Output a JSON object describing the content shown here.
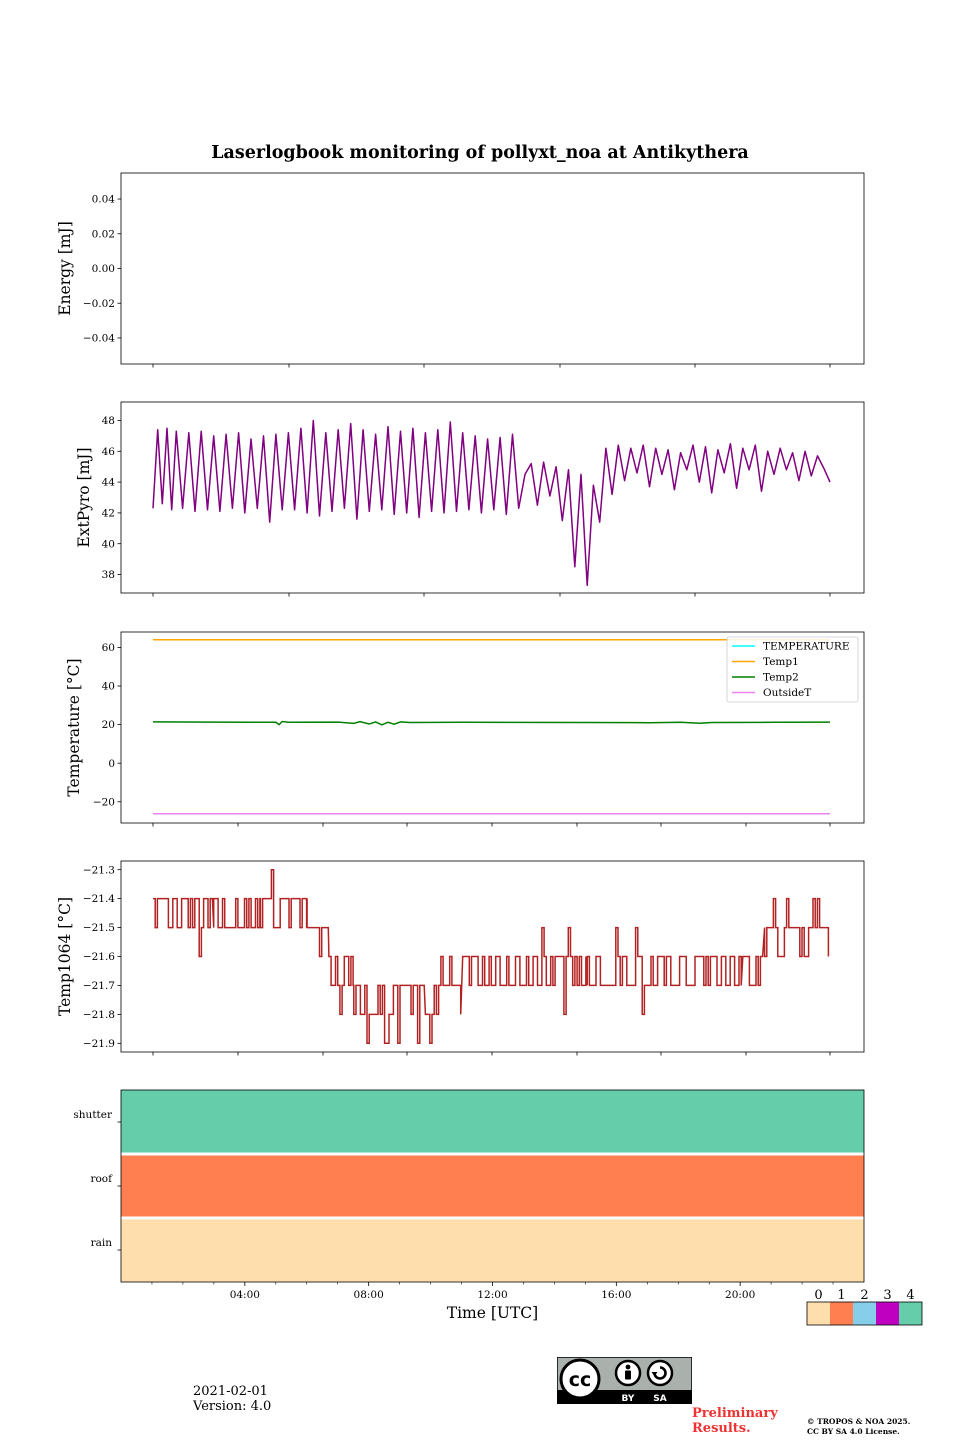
{
  "figure": {
    "title": "Laserlogbook monitoring of pollyxt_noa at Antikythera",
    "date": "2021-02-01",
    "version": "Version: 4.0",
    "preliminary": [
      "Preliminary",
      "Results."
    ],
    "copyright": [
      "© TROPOS & NOA 2025.",
      "CC BY SA 4.0 License."
    ],
    "license_icon": "cc-by-sa-icon"
  },
  "chart_data": [
    {
      "id": "energy",
      "type": "line",
      "ylabel": "Energy [mJ]",
      "yrange": [
        -0.055,
        0.055
      ],
      "yticks": [
        -0.04,
        -0.02,
        0.0,
        0.02,
        0.04
      ],
      "ytick_labels": [
        "−0.04",
        "−0.02",
        "0.00",
        "0.02",
        "0.04"
      ],
      "series": []
    },
    {
      "id": "extpyro",
      "type": "line",
      "ylabel": "ExtPyro [mJ]",
      "yrange": [
        36.8,
        49.2
      ],
      "yticks": [
        38,
        40,
        42,
        44,
        46,
        48
      ],
      "ytick_labels": [
        "38",
        "40",
        "42",
        "44",
        "46",
        "48"
      ],
      "series": [
        {
          "color": "#800080",
          "x_hours": [
            0.05,
            0.2,
            0.35,
            0.5,
            0.65,
            0.8,
            1.0,
            1.2,
            1.4,
            1.6,
            1.8,
            2.0,
            2.2,
            2.4,
            2.6,
            2.8,
            3.0,
            3.2,
            3.4,
            3.6,
            3.8,
            4.0,
            4.2,
            4.4,
            4.6,
            4.8,
            5.0,
            5.2,
            5.4,
            5.6,
            5.8,
            6.0,
            6.2,
            6.4,
            6.6,
            6.8,
            7.0,
            7.2,
            7.4,
            7.6,
            7.8,
            8.0,
            8.2,
            8.4,
            8.6,
            8.8,
            9.0,
            9.2,
            9.4,
            9.6,
            9.8,
            10.0,
            10.2,
            10.4,
            10.6,
            10.8,
            11.0,
            11.2,
            11.4,
            11.6,
            11.8,
            12.0,
            12.2,
            12.4,
            12.6,
            12.8,
            13.0,
            13.2,
            13.4,
            13.6,
            13.8,
            14.0,
            14.2,
            14.4,
            14.6,
            14.8,
            15.0,
            15.2,
            15.4,
            15.6,
            15.8,
            16.0,
            16.2,
            16.4,
            16.6,
            16.8,
            17.0,
            17.2,
            17.4,
            17.6,
            17.8,
            18.0,
            18.2,
            18.4,
            18.6,
            18.8,
            19.0,
            19.2,
            19.4,
            19.6,
            19.8,
            20.0,
            20.2,
            20.4,
            20.6,
            20.8,
            21.0,
            21.2,
            21.4,
            21.6,
            21.8
          ],
          "values": [
            42.3,
            47.4,
            42.6,
            47.5,
            42.2,
            47.3,
            42.3,
            47.2,
            42.1,
            47.3,
            42.2,
            47.0,
            42.1,
            47.1,
            42.3,
            47.2,
            42.0,
            46.8,
            42.3,
            47.0,
            41.4,
            47.1,
            42.2,
            47.2,
            42.2,
            47.5,
            42.0,
            48.0,
            41.8,
            47.2,
            42.1,
            47.4,
            42.3,
            47.8,
            41.6,
            47.4,
            42.1,
            47.1,
            42.2,
            47.6,
            41.9,
            47.3,
            42.0,
            47.5,
            41.7,
            47.2,
            42.1,
            47.4,
            42.0,
            47.9,
            42.1,
            47.2,
            42.2,
            47.0,
            42.0,
            46.8,
            42.2,
            46.9,
            41.9,
            47.1,
            42.3,
            44.5,
            45.2,
            42.5,
            45.3,
            43.1,
            45.0,
            41.5,
            44.8,
            38.5,
            44.5,
            37.3,
            43.8,
            41.4,
            46.2,
            43.2,
            46.4,
            44.1,
            46.2,
            44.6,
            46.4,
            43.7,
            46.2,
            44.5,
            46.1,
            43.5,
            45.9,
            44.8,
            46.4,
            44.0,
            46.3,
            43.3,
            46.1,
            44.6,
            46.5,
            43.6,
            46.2,
            44.8,
            46.4,
            43.4,
            46.0,
            44.5,
            46.2,
            44.8,
            45.9,
            44.1,
            46.0,
            44.4,
            45.7,
            44.9,
            44.0
          ]
        }
      ]
    },
    {
      "id": "temperature",
      "type": "line",
      "ylabel": "Temperature [°C]",
      "yrange": [
        -31,
        68
      ],
      "yticks": [
        -20,
        0,
        20,
        40,
        60
      ],
      "ytick_labels": [
        "−20",
        "0",
        "20",
        "40",
        "60"
      ],
      "legend_position": "top-right",
      "series": [
        {
          "name": "TEMPERATURE",
          "color": "#00ffff",
          "constant": null
        },
        {
          "name": "Temp1",
          "color": "#ffa500",
          "x_hours": [
            0.05,
            21.8
          ],
          "values": [
            64.0,
            64.0
          ]
        },
        {
          "name": "Temp2",
          "color": "#008000",
          "x_hours": [
            0.05,
            2.0,
            4.0,
            4.1,
            4.2,
            4.4,
            6.0,
            6.5,
            6.7,
            7.0,
            7.2,
            7.4,
            7.6,
            7.8,
            8.0,
            8.3,
            10.0,
            14.0,
            16.0,
            17.0,
            17.6,
            18.0,
            20.0,
            21.8
          ],
          "values": [
            21.4,
            21.3,
            21.2,
            20.0,
            21.6,
            21.2,
            21.3,
            20.6,
            21.5,
            20.3,
            21.4,
            19.9,
            21.2,
            20.2,
            21.4,
            21.1,
            21.2,
            21.1,
            21.0,
            21.2,
            20.7,
            21.1,
            21.2,
            21.3
          ]
        },
        {
          "name": "OutsideT",
          "color": "#ee82ee",
          "x_hours": [
            0.05,
            21.8
          ],
          "values": [
            -26.2,
            -26.2
          ]
        }
      ]
    },
    {
      "id": "temp1064",
      "type": "line",
      "ylabel": "Temp1064 [°C]",
      "yrange": [
        -21.93,
        -21.27
      ],
      "yticks": [
        -21.9,
        -21.8,
        -21.7,
        -21.6,
        -21.5,
        -21.4,
        -21.3
      ],
      "ytick_labels": [
        "−21.9",
        "−21.8",
        "−21.7",
        "−21.6",
        "−21.5",
        "−21.4",
        "−21.3"
      ],
      "series": [
        {
          "color": "#b22222",
          "segments": [
            {
              "from": 0.05,
              "to": 2.0,
              "levels": [
                -21.4,
                -21.5
              ],
              "dips": [
                -21.6
              ]
            },
            {
              "from": 2.0,
              "to": 3.5,
              "levels": [
                -21.5,
                -21.4
              ],
              "dips": [
                -21.6
              ]
            },
            {
              "from": 3.5,
              "to": 5.0,
              "levels": [
                -21.4,
                -21.5
              ],
              "dips": [
                -21.3,
                -21.6
              ]
            },
            {
              "from": 5.0,
              "to": 5.4,
              "levels": [
                -21.4,
                -21.5
              ],
              "dips": []
            },
            {
              "from": 5.4,
              "to": 5.7,
              "levels": [
                -21.5,
                -21.6
              ],
              "dips": []
            },
            {
              "from": 5.7,
              "to": 6.5,
              "levels": [
                -21.6,
                -21.7
              ],
              "dips": [
                -21.8
              ]
            },
            {
              "from": 6.5,
              "to": 8.8,
              "levels": [
                -21.7,
                -21.8
              ],
              "dips": [
                -21.9
              ]
            },
            {
              "from": 8.8,
              "to": 9.3,
              "levels": [
                -21.8,
                -21.7
              ],
              "dips": [
                -21.9
              ]
            },
            {
              "from": 9.3,
              "to": 10.0,
              "levels": [
                -21.7,
                -21.6
              ],
              "dips": [
                -21.8
              ]
            },
            {
              "from": 10.0,
              "to": 14.0,
              "levels": [
                -21.6,
                -21.7
              ],
              "dips": [
                -21.5,
                -21.8
              ]
            },
            {
              "from": 14.0,
              "to": 19.0,
              "levels": [
                -21.7,
                -21.6
              ],
              "dips": [
                -21.5,
                -21.8
              ]
            },
            {
              "from": 19.0,
              "to": 19.7,
              "levels": [
                -21.6,
                -21.7
              ],
              "dips": []
            },
            {
              "from": 19.7,
              "to": 21.8,
              "levels": [
                -21.5,
                -21.6
              ],
              "dips": [
                -21.4
              ]
            }
          ]
        }
      ]
    },
    {
      "id": "flags",
      "type": "heatmap",
      "rows": [
        "shutter",
        "roof",
        "rain"
      ],
      "row_values": [
        4,
        1,
        0
      ],
      "x_ticks_hours": [
        4,
        8,
        12,
        16,
        20
      ],
      "x_tick_labels": [
        "04:00",
        "08:00",
        "12:00",
        "16:00",
        "20:00"
      ],
      "x_minor_hours": [
        1,
        2,
        3,
        5,
        6,
        7,
        9,
        10,
        11,
        13,
        14,
        15,
        17,
        18,
        19,
        21,
        22,
        23
      ],
      "xlabel": "Time [UTC]",
      "colorbar": {
        "labels": [
          "0",
          "1",
          "2",
          "3",
          "4"
        ],
        "colors": [
          "#ffdead",
          "#ff7f50",
          "#87ceeb",
          "#c000c0",
          "#66cdaa"
        ]
      }
    }
  ]
}
